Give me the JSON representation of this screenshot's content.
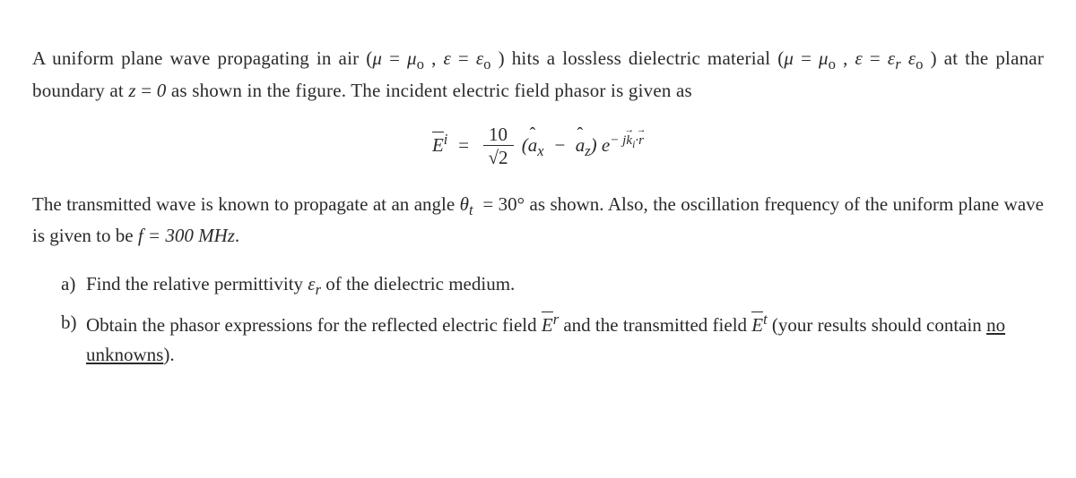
{
  "para1_a": "A uniform plane wave propagating in air (",
  "mu_eq": "μ",
  "mu0": "μ",
  "eps_eq": "ε",
  "eps0": "ε",
  "para1_b": ") hits a lossless dielectric material (",
  "epsr": "ε",
  "para1_c": ") at the planar boundary at ",
  "z_sym": "z",
  "zero": "0",
  "para1_d": " as shown in the figure. The incident electric field phasor is given as",
  "E_sym": "E",
  "sup_i": "i",
  "num10": "10",
  "den_sqrt2": "√2",
  "ax": "a",
  "az": "a",
  "x_sub": "x",
  "z_sub": "z",
  "exp_body": "e",
  "exp_sup_a": "− j",
  "k_sym": "k",
  "r_sym": "r",
  "sub_i": "i",
  "dotc": "·",
  "para2_a": "The transmitted wave is known to propagate at an angle ",
  "theta": "θ",
  "sub_t": "t",
  "eq30": "= 30°",
  "para2_b": " as shown. Also, the oscillation frequency of the uniform plane wave is given to be ",
  "f_eq": "f = 300 MHz",
  "dot": ".",
  "qa_lab": "a)",
  "qa_a": "Find the relative permittivity ",
  "eps_sym": "ε",
  "sub_r": "r",
  "qa_b": " of the dielectric medium.",
  "qb_lab": "b)",
  "qb_a": "Obtain the phasor expressions for the reflected electric field ",
  "sup_r": "r",
  "qb_b": " and the transmitted field ",
  "sup_t": "t",
  "qb_c": " (your results should contain ",
  "qb_u": "no unknowns",
  "qb_d": ")."
}
